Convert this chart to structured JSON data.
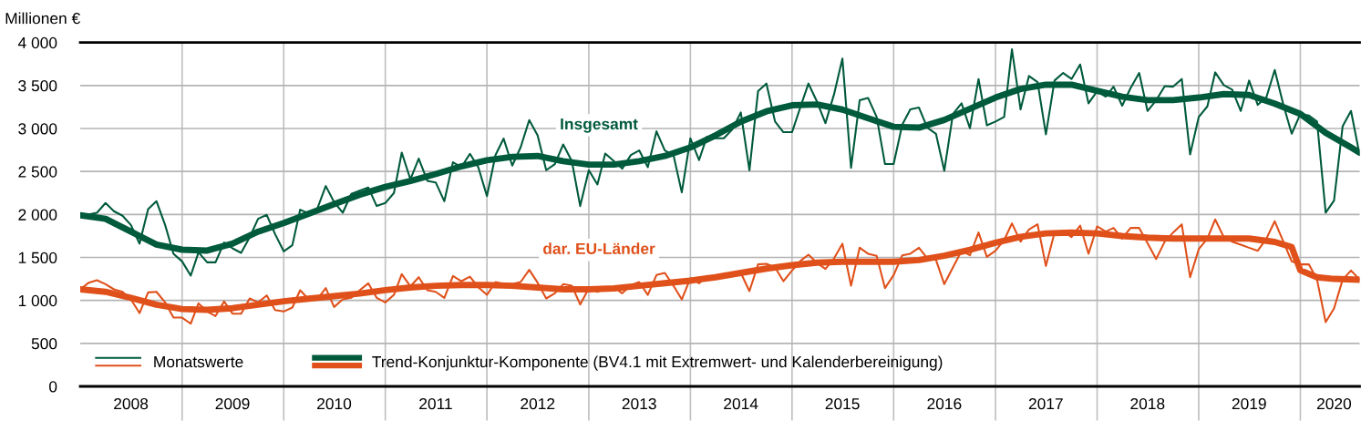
{
  "chart_data": {
    "type": "line",
    "ylabel": "Millionen €",
    "x": [
      "2008-01",
      "2008-02",
      "2008-03",
      "2008-04",
      "2008-05",
      "2008-06",
      "2008-07",
      "2008-08",
      "2008-09",
      "2008-10",
      "2008-11",
      "2008-12",
      "2009-01",
      "2009-02",
      "2009-03",
      "2009-04",
      "2009-05",
      "2009-06",
      "2009-07",
      "2009-08",
      "2009-09",
      "2009-10",
      "2009-11",
      "2009-12",
      "2010-01",
      "2010-02",
      "2010-03",
      "2010-04",
      "2010-05",
      "2010-06",
      "2010-07",
      "2010-08",
      "2010-09",
      "2010-10",
      "2010-11",
      "2010-12",
      "2011-01",
      "2011-02",
      "2011-03",
      "2011-04",
      "2011-05",
      "2011-06",
      "2011-07",
      "2011-08",
      "2011-09",
      "2011-10",
      "2011-11",
      "2011-12",
      "2012-01",
      "2012-02",
      "2012-03",
      "2012-04",
      "2012-05",
      "2012-06",
      "2012-07",
      "2012-08",
      "2012-09",
      "2012-10",
      "2012-11",
      "2012-12",
      "2013-01",
      "2013-02",
      "2013-03",
      "2013-04",
      "2013-05",
      "2013-06",
      "2013-07",
      "2013-08",
      "2013-09",
      "2013-10",
      "2013-11",
      "2013-12",
      "2014-01",
      "2014-02",
      "2014-03",
      "2014-04",
      "2014-05",
      "2014-06",
      "2014-07",
      "2014-08",
      "2014-09",
      "2014-10",
      "2014-11",
      "2014-12",
      "2015-01",
      "2015-02",
      "2015-03",
      "2015-04",
      "2015-05",
      "2015-06",
      "2015-07",
      "2015-08",
      "2015-09",
      "2015-10",
      "2015-11",
      "2015-12",
      "2016-01",
      "2016-02",
      "2016-03",
      "2016-04",
      "2016-05",
      "2016-06",
      "2016-07",
      "2016-08",
      "2016-09",
      "2016-10",
      "2016-11",
      "2016-12",
      "2017-01",
      "2017-02",
      "2017-03",
      "2017-04",
      "2017-05",
      "2017-06",
      "2017-07",
      "2017-08",
      "2017-09",
      "2017-10",
      "2017-11",
      "2017-12",
      "2018-01",
      "2018-02",
      "2018-03",
      "2018-04",
      "2018-05",
      "2018-06",
      "2018-07",
      "2018-08",
      "2018-09",
      "2018-10",
      "2018-11",
      "2018-12",
      "2019-01",
      "2019-02",
      "2019-03",
      "2019-04",
      "2019-05",
      "2019-06",
      "2019-07",
      "2019-08",
      "2019-09",
      "2019-10",
      "2019-11",
      "2019-12",
      "2020-01",
      "2020-02",
      "2020-03",
      "2020-04",
      "2020-05",
      "2020-06",
      "2020-07",
      "2020-08"
    ],
    "series": [
      {
        "name": "Monatswerte",
        "color": "#005a3c",
        "values": [
          1985,
          2000,
          2020,
          2133,
          2038,
          1985,
          1878,
          1660,
          2062,
          2154,
          1878,
          1543,
          1454,
          1288,
          1560,
          1443,
          1443,
          1673,
          1606,
          1553,
          1737,
          1949,
          1995,
          1772,
          1571,
          1642,
          2055,
          2013,
          2062,
          2331,
          2144,
          2020,
          2239,
          2278,
          2313,
          2098,
          2133,
          2250,
          2720,
          2409,
          2650,
          2391,
          2373,
          2154,
          2607,
          2550,
          2706,
          2550,
          2214,
          2692,
          2883,
          2568,
          2780,
          3098,
          2922,
          2515,
          2586,
          2815,
          2621,
          2098,
          2515,
          2349,
          2709,
          2621,
          2533,
          2692,
          2745,
          2550,
          2967,
          2745,
          2692,
          2257,
          2886,
          2632,
          2904,
          2886,
          2886,
          2992,
          3187,
          2515,
          3434,
          3523,
          3081,
          2957,
          2957,
          3257,
          3523,
          3310,
          3063,
          3399,
          3813,
          2543,
          3328,
          3356,
          3134,
          2586,
          2586,
          3045,
          3222,
          3243,
          3010,
          2939,
          2508,
          3169,
          3293,
          3003,
          3576,
          3038,
          3081,
          3134,
          3922,
          3222,
          3611,
          3540,
          2932,
          3558,
          3646,
          3576,
          3745,
          3293,
          3434,
          3371,
          3487,
          3265,
          3470,
          3646,
          3204,
          3328,
          3494,
          3487,
          3576,
          2699,
          3134,
          3257,
          3653,
          3505,
          3452,
          3204,
          3558,
          3275,
          3364,
          3682,
          3275,
          2939,
          3169,
          3151,
          3081,
          2020,
          2161,
          3028,
          3204,
          2692
        ]
      },
      {
        "color": "#e0501a",
        "values": [
          1129,
          1207,
          1235,
          1189,
          1129,
          1100,
          1012,
          853,
          1093,
          1100,
          977,
          800,
          800,
          729,
          966,
          871,
          818,
          987,
          846,
          846,
          1023,
          977,
          1058,
          888,
          871,
          917,
          1118,
          1012,
          1012,
          1143,
          924,
          1012,
          1030,
          1118,
          1199,
          1030,
          977,
          1065,
          1306,
          1164,
          1270,
          1118,
          1100,
          1030,
          1284,
          1224,
          1277,
          1153,
          1065,
          1214,
          1189,
          1189,
          1214,
          1355,
          1207,
          1023,
          1083,
          1189,
          1171,
          952,
          1143,
          1100,
          1136,
          1153,
          1083,
          1178,
          1214,
          1065,
          1295,
          1320,
          1171,
          1012,
          1260,
          1199,
          1284,
          1270,
          1284,
          1306,
          1320,
          1108,
          1419,
          1426,
          1384,
          1224,
          1348,
          1461,
          1532,
          1436,
          1366,
          1489,
          1659,
          1171,
          1613,
          1543,
          1518,
          1143,
          1295,
          1525,
          1543,
          1613,
          1489,
          1472,
          1189,
          1384,
          1578,
          1525,
          1790,
          1507,
          1578,
          1702,
          1896,
          1684,
          1825,
          1885,
          1401,
          1790,
          1808,
          1737,
          1871,
          1543,
          1861,
          1801,
          1843,
          1719,
          1843,
          1843,
          1666,
          1482,
          1684,
          1790,
          1885,
          1270,
          1596,
          1719,
          1942,
          1737,
          1684,
          1649,
          1613,
          1578,
          1719,
          1921,
          1684,
          1454,
          1419,
          1419,
          1242,
          747,
          906,
          1242,
          1348,
          1242
        ]
      },
      {
        "name": "Trend-Konjunktur-Komponente (BV4.1 mit Extremwert- und Kalenderbereinigung)",
        "color": "#005a3c",
        "x": [
          "2008-01",
          "2008-04",
          "2008-07",
          "2008-10",
          "2009-01",
          "2009-04",
          "2009-07",
          "2009-10",
          "2010-01",
          "2010-04",
          "2010-07",
          "2010-10",
          "2011-01",
          "2011-04",
          "2011-07",
          "2011-10",
          "2012-01",
          "2012-04",
          "2012-07",
          "2012-10",
          "2013-01",
          "2013-04",
          "2013-07",
          "2013-10",
          "2014-01",
          "2014-04",
          "2014-07",
          "2014-10",
          "2015-01",
          "2015-04",
          "2015-07",
          "2015-10",
          "2016-01",
          "2016-04",
          "2016-07",
          "2016-10",
          "2017-01",
          "2017-04",
          "2017-07",
          "2017-10",
          "2018-01",
          "2018-04",
          "2018-07",
          "2018-10",
          "2019-01",
          "2019-04",
          "2019-07",
          "2019-10",
          "2020-01",
          "2020-04",
          "2020-07",
          "2020-08"
        ],
        "values": [
          1990,
          1950,
          1800,
          1650,
          1590,
          1580,
          1660,
          1800,
          1900,
          2010,
          2120,
          2230,
          2320,
          2390,
          2470,
          2560,
          2630,
          2670,
          2680,
          2620,
          2580,
          2580,
          2620,
          2680,
          2780,
          2920,
          3080,
          3200,
          3270,
          3280,
          3220,
          3120,
          3020,
          3010,
          3100,
          3230,
          3360,
          3460,
          3510,
          3510,
          3440,
          3370,
          3330,
          3330,
          3360,
          3400,
          3390,
          3290,
          3170,
          2950,
          2780,
          2720
        ]
      },
      {
        "color": "#e0501a",
        "x": [
          "2008-01",
          "2008-04",
          "2008-07",
          "2008-10",
          "2009-01",
          "2009-04",
          "2009-07",
          "2009-10",
          "2010-01",
          "2010-04",
          "2010-07",
          "2010-10",
          "2011-01",
          "2011-04",
          "2011-07",
          "2011-10",
          "2012-01",
          "2012-04",
          "2012-07",
          "2012-10",
          "2013-01",
          "2013-04",
          "2013-07",
          "2013-10",
          "2014-01",
          "2014-04",
          "2014-07",
          "2014-10",
          "2015-01",
          "2015-04",
          "2015-07",
          "2015-10",
          "2016-01",
          "2016-04",
          "2016-07",
          "2016-10",
          "2017-01",
          "2017-04",
          "2017-07",
          "2017-10",
          "2018-01",
          "2018-04",
          "2018-07",
          "2018-10",
          "2019-01",
          "2019-04",
          "2019-07",
          "2019-10",
          "2019-12",
          "2020-01",
          "2020-03",
          "2020-05",
          "2020-08"
        ],
        "values": [
          1130,
          1100,
          1030,
          950,
          900,
          890,
          910,
          950,
          990,
          1020,
          1050,
          1080,
          1120,
          1150,
          1170,
          1180,
          1180,
          1170,
          1150,
          1130,
          1130,
          1140,
          1170,
          1200,
          1230,
          1270,
          1320,
          1370,
          1410,
          1440,
          1450,
          1450,
          1450,
          1470,
          1520,
          1590,
          1670,
          1740,
          1780,
          1790,
          1780,
          1750,
          1730,
          1720,
          1720,
          1720,
          1720,
          1680,
          1620,
          1350,
          1270,
          1250,
          1240
        ]
      }
    ],
    "annotations": [
      "Insgesamt",
      "dar. EU-Länder"
    ],
    "xlim": [
      "2008-01",
      "2020-08"
    ],
    "xticks": [
      {
        "value": "2008-07",
        "label": "2008"
      },
      {
        "value": "2009-01",
        "label": null
      },
      {
        "value": "2009-07",
        "label": "2009"
      },
      {
        "value": "2010-01",
        "label": null
      },
      {
        "value": "2010-07",
        "label": "2010"
      },
      {
        "value": "2011-01",
        "label": null
      },
      {
        "value": "2011-07",
        "label": "2011"
      },
      {
        "value": "2012-01",
        "label": null
      },
      {
        "value": "2012-07",
        "label": "2012"
      },
      {
        "value": "2013-01",
        "label": null
      },
      {
        "value": "2013-07",
        "label": "2013"
      },
      {
        "value": "2014-01",
        "label": null
      },
      {
        "value": "2014-07",
        "label": "2014"
      },
      {
        "value": "2015-01",
        "label": null
      },
      {
        "value": "2015-07",
        "label": "2015"
      },
      {
        "value": "2016-01",
        "label": null
      },
      {
        "value": "2016-07",
        "label": "2016"
      },
      {
        "value": "2017-01",
        "label": null
      },
      {
        "value": "2017-07",
        "label": "2017"
      },
      {
        "value": "2018-01",
        "label": null
      },
      {
        "value": "2018-07",
        "label": "2018"
      },
      {
        "value": "2019-01",
        "label": null
      },
      {
        "value": "2019-07",
        "label": "2019"
      },
      {
        "value": "2020-01",
        "label": null
      },
      {
        "value": "2020-05",
        "label": "2020"
      }
    ],
    "ylim": [
      0,
      4000
    ],
    "yticks": [
      0,
      500,
      {
        "value": 1000,
        "label": "1 000"
      },
      {
        "value": 1500,
        "label": "1 500"
      },
      {
        "value": 2000,
        "label": "2 000"
      },
      {
        "value": 2500,
        "label": "2 500"
      },
      {
        "value": 3000,
        "label": "3 000"
      },
      {
        "value": 3500,
        "label": "3 500"
      },
      {
        "value": 4000,
        "label": "4 000"
      }
    ],
    "grid": true,
    "legend": "bottom left",
    "marker": "none",
    "line_style": "solid"
  }
}
